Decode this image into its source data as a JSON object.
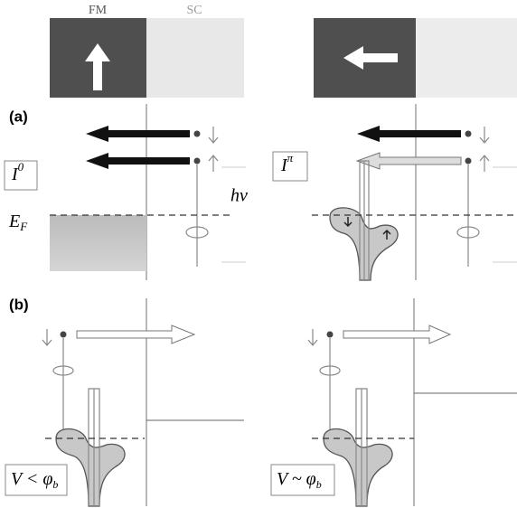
{
  "header": {
    "fm": "FM",
    "sc": "SC"
  },
  "panel_a": {
    "label": "(a)",
    "left_current": {
      "base": "I",
      "sup": "0"
    },
    "right_current": {
      "base": "I",
      "sup": "π"
    },
    "photon": "hν",
    "fermi": {
      "base": "E",
      "sub": "F"
    }
  },
  "panel_b": {
    "label": "(b)",
    "left_bias": {
      "main": "V < φ",
      "sub": "b"
    },
    "right_bias": {
      "main": "V ~ φ",
      "sub": "b"
    }
  }
}
